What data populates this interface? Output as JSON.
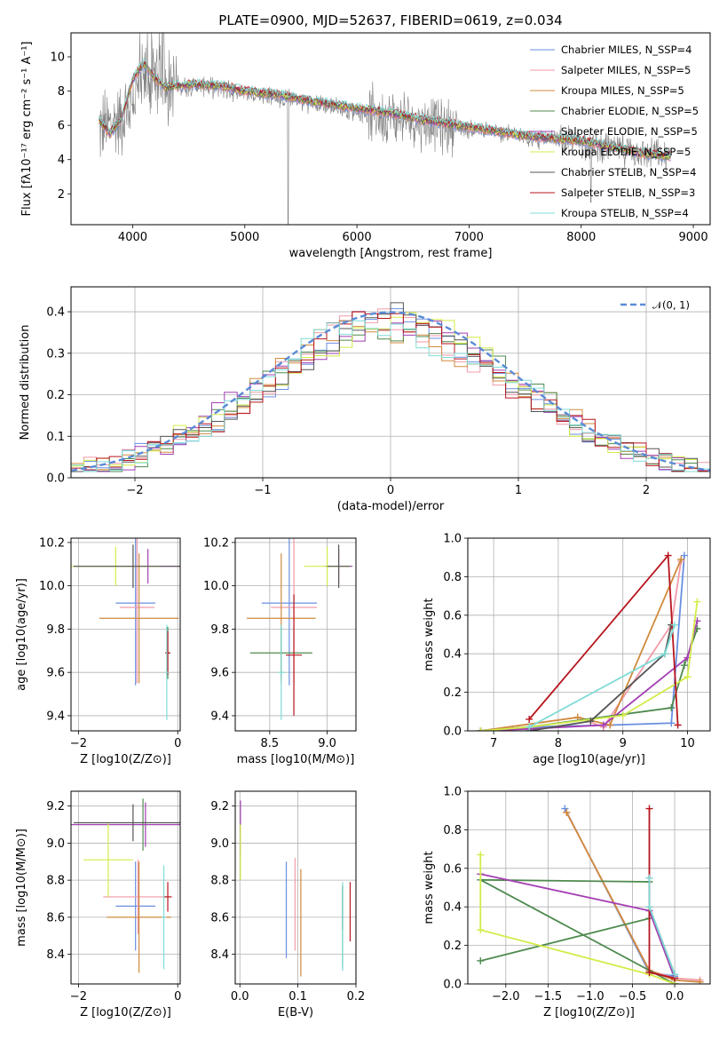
{
  "figure_title": "PLATE=0900, MJD=52637, FIBERID=0619, z=0.034",
  "models": [
    {
      "name": "Chabrier MILES, N_SSP=4",
      "color": "#6a8fe0"
    },
    {
      "name": "Salpeter MILES, N_SSP=5",
      "color": "#f19aa8"
    },
    {
      "name": "Kroupa MILES, N_SSP=5",
      "color": "#d08a3e"
    },
    {
      "name": "Chabrier ELODIE, N_SSP=5",
      "color": "#4f8a4f"
    },
    {
      "name": "Salpeter ELODIE, N_SSP=5",
      "color": "#a43fb3"
    },
    {
      "name": "Kroupa ELODIE, N_SSP=5",
      "color": "#d3ec48"
    },
    {
      "name": "Chabrier STELIB, N_SSP=4",
      "color": "#555555"
    },
    {
      "name": "Salpeter STELIB, N_SSP=3",
      "color": "#b7161e"
    },
    {
      "name": "Kroupa STELIB, N_SSP=4",
      "color": "#7fdbd6"
    }
  ],
  "chart_data": [
    {
      "panel": "spectrum",
      "type": "line",
      "xlabel": "wavelength [Angstrom, rest frame]",
      "ylabel": "Flux [fλ10⁻¹⁷ erg cm⁻² s⁻¹ A⁻¹]",
      "xlim": [
        3450,
        9150
      ],
      "ylim": [
        0.2,
        11.4
      ],
      "xticks": [
        4000,
        5000,
        6000,
        7000,
        8000,
        9000
      ],
      "yticks": [
        2,
        4,
        6,
        8,
        10
      ],
      "grid": false,
      "legend": "top-right",
      "data_color": "#7f7f7f",
      "data_continuum": {
        "x": [
          3700,
          3900,
          4100,
          4300,
          4600,
          5000,
          5500,
          6000,
          6500,
          7000,
          7500,
          8000,
          8500,
          8800
        ],
        "y": [
          5.8,
          6.4,
          8.6,
          8.3,
          8.3,
          7.9,
          7.4,
          6.8,
          6.3,
          5.8,
          5.3,
          5.0,
          4.4,
          4.2
        ]
      },
      "model_continuum": {
        "x": [
          3700,
          3800,
          3900,
          4000,
          4100,
          4200,
          4300,
          4500,
          4800,
          5000,
          5300,
          5600,
          6000,
          6300,
          6600,
          7000,
          7300,
          7600,
          8000,
          8300,
          8600,
          8800
        ],
        "y": [
          6.3,
          5.5,
          6.4,
          8.7,
          9.6,
          8.7,
          8.2,
          8.4,
          8.3,
          8.0,
          7.8,
          7.4,
          7.0,
          6.7,
          6.3,
          5.9,
          5.6,
          5.3,
          5.1,
          4.7,
          4.3,
          4.2
        ]
      }
    },
    {
      "panel": "residual-distribution",
      "type": "line",
      "xlabel": "(data-model)/error",
      "ylabel": "Normed distribution",
      "xlim": [
        -2.5,
        2.5
      ],
      "ylim": [
        0,
        0.46
      ],
      "xticks": [
        -2,
        -1,
        0,
        1,
        2
      ],
      "yticks": [
        0.0,
        0.1,
        0.2,
        0.3,
        0.4
      ],
      "grid": true,
      "legend": "top-right",
      "reference_label": "𝒩(0, 1)",
      "reference_color": "#5b8bd6"
    },
    {
      "panel": "age-vs-Z",
      "type": "scatter",
      "xlabel": "Z [log10(Z/Z⊙)]",
      "ylabel": "age [log10(age/yr)]",
      "xlim": [
        -2.15,
        0.05
      ],
      "ylim": [
        9.33,
        10.22
      ],
      "xticks": [
        -2,
        0
      ],
      "yticks": [
        9.4,
        9.6,
        9.8,
        10.0,
        10.2
      ],
      "grid": true,
      "series": [
        {
          "model": 0,
          "x": -0.85,
          "xerr": 0.4,
          "y": 9.92,
          "yerr": 0.38
        },
        {
          "model": 1,
          "x": -0.82,
          "xerr": 0.35,
          "y": 9.9,
          "yerr": 0.35
        },
        {
          "model": 2,
          "x": -0.78,
          "xerr": 0.8,
          "y": 9.85,
          "yerr": 0.3
        },
        {
          "model": 3,
          "x": -0.2,
          "xerr": 0.05,
          "y": 9.69,
          "yerr": 0.12
        },
        {
          "model": 4,
          "x": -0.6,
          "xerr": 1.5,
          "y": 10.09,
          "yerr": 0.08
        },
        {
          "model": 5,
          "x": -1.25,
          "xerr": 0.9,
          "y": 10.09,
          "yerr": 0.09
        },
        {
          "model": 6,
          "x": -0.9,
          "xerr": 1.2,
          "y": 10.09,
          "yerr": 0.1
        },
        {
          "model": 7,
          "x": -0.2,
          "xerr": 0.05,
          "y": 9.69,
          "yerr": 0.1
        },
        {
          "model": 8,
          "x": -0.22,
          "xerr": 0.03,
          "y": 9.6,
          "yerr": 0.22
        }
      ]
    },
    {
      "panel": "age-vs-mass",
      "type": "scatter",
      "xlabel": "mass [log10(M/M⊙)]",
      "ylabel": "",
      "xlim": [
        8.2,
        9.25
      ],
      "ylim": [
        9.33,
        10.22
      ],
      "xticks": [
        8.5,
        9.0
      ],
      "yticks": [
        9.4,
        9.6,
        9.8,
        10.0,
        10.2
      ],
      "grid": true,
      "series": [
        {
          "model": 0,
          "x": 8.67,
          "xerr": 0.24,
          "y": 9.92,
          "yerr": 0.38
        },
        {
          "model": 1,
          "x": 8.71,
          "xerr": 0.2,
          "y": 9.9,
          "yerr": 0.35
        },
        {
          "model": 2,
          "x": 8.6,
          "xerr": 0.3,
          "y": 9.85,
          "yerr": 0.3
        },
        {
          "model": 3,
          "x": 8.6,
          "xerr": 0.27,
          "y": 9.69,
          "yerr": 0.12
        },
        {
          "model": 4,
          "x": 9.1,
          "xerr": 0.12,
          "y": 10.09,
          "yerr": 0.08
        },
        {
          "model": 5,
          "x": 9.0,
          "xerr": 0.2,
          "y": 10.09,
          "yerr": 0.09
        },
        {
          "model": 6,
          "x": 9.1,
          "xerr": 0.1,
          "y": 10.09,
          "yerr": 0.1
        },
        {
          "model": 7,
          "x": 8.71,
          "xerr": 0.07,
          "y": 9.68,
          "yerr": 0.28
        },
        {
          "model": 8,
          "x": 8.6,
          "xerr": 0.03,
          "y": 9.6,
          "yerr": 0.22
        }
      ]
    },
    {
      "panel": "weight-vs-age",
      "type": "line",
      "xlabel": "age  [log10(age/yr)]",
      "ylabel": "mass weight",
      "xlim": [
        6.6,
        10.35
      ],
      "ylim": [
        0,
        1.0
      ],
      "xticks": [
        7,
        8,
        9,
        10
      ],
      "yticks": [
        0.0,
        0.2,
        0.4,
        0.6,
        0.8,
        1.0
      ],
      "grid": true,
      "series": [
        {
          "model": 0,
          "x": [
            6.8,
            7.55,
            8.8,
            9.75,
            9.95
          ],
          "y": [
            0.0,
            0.02,
            0.03,
            0.04,
            0.91
          ]
        },
        {
          "model": 1,
          "x": [
            6.8,
            8.3,
            8.7,
            9.75,
            9.9
          ],
          "y": [
            0.0,
            0.07,
            0.02,
            0.55,
            0.88
          ]
        },
        {
          "model": 2,
          "x": [
            6.8,
            8.3,
            8.8,
            9.9
          ],
          "y": [
            0.0,
            0.07,
            0.03,
            0.89
          ]
        },
        {
          "model": 3,
          "x": [
            6.8,
            7.55,
            9.75,
            9.95,
            10.15
          ],
          "y": [
            0.0,
            0.02,
            0.12,
            0.34,
            0.53
          ]
        },
        {
          "model": 4,
          "x": [
            6.8,
            7.55,
            8.7,
            10.0,
            10.15
          ],
          "y": [
            0.0,
            0.01,
            0.03,
            0.38,
            0.57
          ]
        },
        {
          "model": 5,
          "x": [
            6.8,
            7.55,
            9.0,
            10.0,
            10.15
          ],
          "y": [
            0.0,
            0.02,
            0.08,
            0.28,
            0.67
          ]
        },
        {
          "model": 6,
          "x": [
            7.55,
            8.5,
            9.65,
            9.75
          ],
          "y": [
            0.0,
            0.05,
            0.4,
            0.55
          ]
        },
        {
          "model": 7,
          "x": [
            7.55,
            9.7,
            9.85
          ],
          "y": [
            0.06,
            0.91,
            0.03
          ]
        },
        {
          "model": 8,
          "x": [
            7.55,
            9.65,
            9.8
          ],
          "y": [
            0.02,
            0.4,
            0.55
          ]
        }
      ]
    },
    {
      "panel": "mass-vs-Z",
      "type": "scatter",
      "xlabel": "Z [log10(Z/Z⊙)]",
      "ylabel": "mass [log10(M/M⊙)]",
      "xlim": [
        -2.15,
        0.05
      ],
      "ylim": [
        8.24,
        9.28
      ],
      "xticks": [
        -2,
        0
      ],
      "yticks": [
        8.4,
        8.6,
        8.8,
        9.0,
        9.2
      ],
      "grid": true,
      "series": [
        {
          "model": 0,
          "x": -0.85,
          "xerr": 0.4,
          "y": 8.66,
          "yerr": 0.24
        },
        {
          "model": 1,
          "x": -0.8,
          "xerr": 0.7,
          "y": 8.71,
          "yerr": 0.2
        },
        {
          "model": 2,
          "x": -0.78,
          "xerr": 0.65,
          "y": 8.6,
          "yerr": 0.3
        },
        {
          "model": 3,
          "x": -0.7,
          "xerr": 1.4,
          "y": 9.1,
          "yerr": 0.14
        },
        {
          "model": 4,
          "x": -0.65,
          "xerr": 1.5,
          "y": 9.1,
          "yerr": 0.12
        },
        {
          "model": 5,
          "x": -1.4,
          "xerr": 0.5,
          "y": 8.91,
          "yerr": 0.2
        },
        {
          "model": 6,
          "x": -0.9,
          "xerr": 1.2,
          "y": 9.11,
          "yerr": 0.1
        },
        {
          "model": 7,
          "x": -0.2,
          "xerr": 0.07,
          "y": 8.71,
          "yerr": 0.08
        },
        {
          "model": 8,
          "x": -0.28,
          "xerr": 0.04,
          "y": 8.6,
          "yerr": 0.28
        }
      ]
    },
    {
      "panel": "mass-vs-ebv",
      "type": "scatter",
      "xlabel": "E(B-V)",
      "ylabel": "",
      "xlim": [
        -0.008,
        0.2
      ],
      "ylim": [
        8.24,
        9.28
      ],
      "xticks": [
        0.0,
        0.1,
        0.2
      ],
      "yticks": [
        8.4,
        8.6,
        8.8,
        9.0,
        9.2
      ],
      "grid": true,
      "series": [
        {
          "model": 0,
          "x": 0.08,
          "y": 8.64,
          "yerr": 0.26
        },
        {
          "model": 1,
          "x": 0.095,
          "y": 8.67,
          "yerr": 0.25
        },
        {
          "model": 2,
          "x": 0.105,
          "y": 8.57,
          "yerr": 0.29
        },
        {
          "model": 3,
          "x": 0.177,
          "y": 8.55,
          "yerr": 0.22
        },
        {
          "model": 4,
          "x": 0.001,
          "y": 9.08,
          "yerr": 0.15
        },
        {
          "model": 5,
          "x": 0.001,
          "y": 8.95,
          "yerr": 0.15
        },
        {
          "model": 6,
          "x": 0.177,
          "y": 8.65,
          "yerr": 0.12
        },
        {
          "model": 7,
          "x": 0.19,
          "y": 8.63,
          "yerr": 0.16
        },
        {
          "model": 8,
          "x": 0.177,
          "y": 8.55,
          "yerr": 0.24
        }
      ]
    },
    {
      "panel": "weight-vs-Z",
      "type": "line",
      "xlabel": "Z [log10(Z/Z⊙)]",
      "ylabel": "mass weight",
      "xlim": [
        -2.45,
        0.42
      ],
      "ylim": [
        0,
        1.0
      ],
      "xticks": [
        -2.0,
        -1.5,
        -1.0,
        -0.5,
        0.0
      ],
      "yticks": [
        0.0,
        0.2,
        0.4,
        0.6,
        0.8,
        1.0
      ],
      "grid": true,
      "series": [
        {
          "model": 0,
          "x": [
            -1.3,
            -0.3,
            0.0,
            0.0
          ],
          "y": [
            0.91,
            0.06,
            0.04,
            0.0
          ]
        },
        {
          "model": 1,
          "x": [
            -1.28,
            -0.3,
            0.0,
            0.3
          ],
          "y": [
            0.89,
            0.07,
            0.03,
            0.02
          ]
        },
        {
          "model": 2,
          "x": [
            -1.28,
            -0.3,
            0.0,
            0.3
          ],
          "y": [
            0.89,
            0.07,
            0.02,
            0.01
          ]
        },
        {
          "model": 3,
          "x": [
            -2.3,
            -0.3,
            -0.3,
            -2.3,
            0.0
          ],
          "y": [
            0.12,
            0.34,
            0.53,
            0.54,
            0.0
          ]
        },
        {
          "model": 4,
          "x": [
            -2.3,
            -0.3,
            0.0
          ],
          "y": [
            0.57,
            0.38,
            0.03
          ]
        },
        {
          "model": 5,
          "x": [
            -2.3,
            -2.3,
            -0.3,
            0.0
          ],
          "y": [
            0.67,
            0.28,
            0.05,
            0.0
          ]
        },
        {
          "model": 6,
          "x": [
            -0.3,
            -0.3,
            0.0
          ],
          "y": [
            0.55,
            0.4,
            0.05
          ]
        },
        {
          "model": 7,
          "x": [
            -0.3,
            -0.3,
            0.0
          ],
          "y": [
            0.91,
            0.06,
            0.03
          ]
        },
        {
          "model": 8,
          "x": [
            -0.3,
            -0.3,
            0.0
          ],
          "y": [
            0.55,
            0.4,
            0.05
          ]
        }
      ]
    }
  ]
}
